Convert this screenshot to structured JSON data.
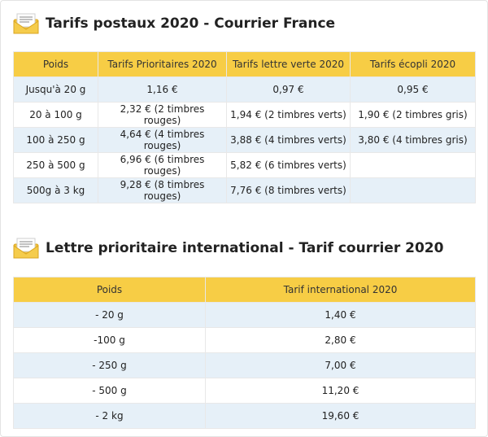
{
  "section1": {
    "title": "Tarifs postaux 2020 - Courrier France",
    "icon": "envelope-icon",
    "headers": [
      "Poids",
      "Tarifs Prioritaires 2020",
      "Tarifs lettre verte 2020",
      "Tarifs écopli 2020"
    ],
    "rows": [
      [
        "Jusqu'à 20 g",
        "1,16 €",
        "0,97 €",
        "0,95 €"
      ],
      [
        "20 à 100 g",
        "2,32 € (2 timbres rouges)",
        "1,94 € (2 timbres verts)",
        "1,90 € (2 timbres gris)"
      ],
      [
        "100 à 250 g",
        "4,64 € (4 timbres rouges)",
        "3,88 € (4 timbres verts)",
        "3,80 € (4 timbres gris)"
      ],
      [
        "250 à 500 g",
        "6,96 € (6 timbres rouges)",
        "5,82 € (6 timbres verts)",
        ""
      ],
      [
        "500g à 3 kg",
        "9,28 € (8 timbres rouges)",
        "7,76 € (8 timbres verts)",
        ""
      ]
    ]
  },
  "section2": {
    "title": "Lettre prioritaire international - Tarif courrier 2020",
    "icon": "envelope-icon",
    "headers": [
      "Poids",
      "Tarif international 2020"
    ],
    "rows": [
      [
        "- 20 g",
        "1,40 €"
      ],
      [
        "-100 g",
        "2,80 €"
      ],
      [
        "- 250 g",
        "7,00 €"
      ],
      [
        "- 500 g",
        "11,20 €"
      ],
      [
        "- 2 kg",
        "19,60 €"
      ]
    ]
  },
  "colors": {
    "header_bg": "#f7cd45",
    "alt_row_bg": "#e6f0f8",
    "envelope": "#f2c23c"
  }
}
